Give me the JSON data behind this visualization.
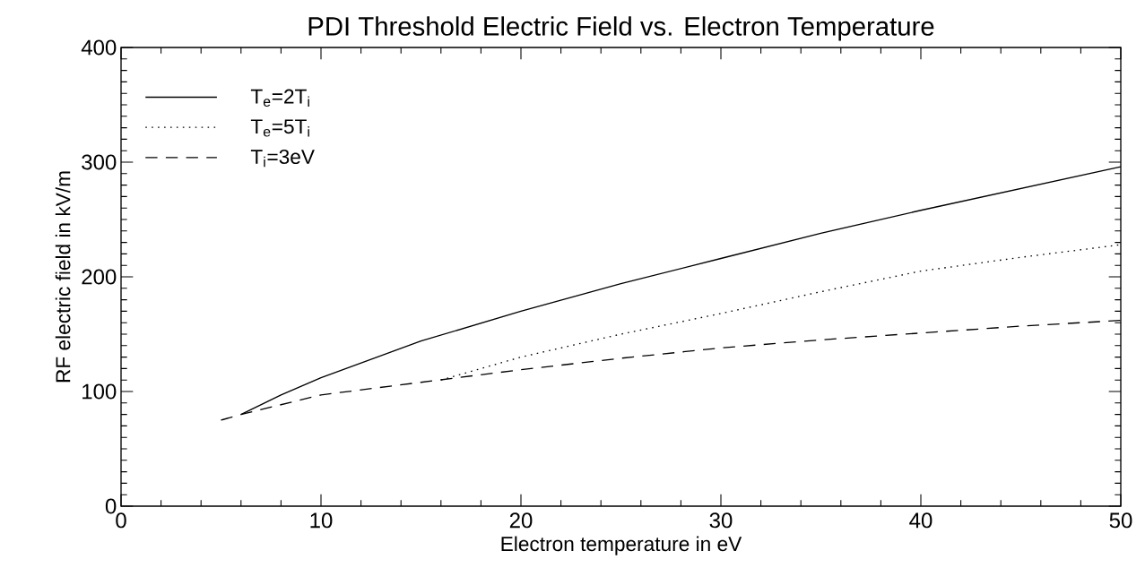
{
  "chart_data": {
    "type": "line",
    "title": "PDI Threshold Electric Field vs. Electron Temperature",
    "xlabel": "Electron temperature in eV",
    "ylabel": "RF electric field in kV/m",
    "xlim": [
      0,
      50
    ],
    "ylim": [
      0,
      400
    ],
    "xticks": [
      0,
      10,
      20,
      30,
      40,
      50
    ],
    "yticks": [
      0,
      100,
      200,
      300,
      400
    ],
    "legend": "top left",
    "grid": false,
    "marker": "none",
    "series": [
      {
        "name": "T$_{e}$=2T$_{i}$",
        "color": "#000000",
        "line_style": "solid",
        "x": [
          6,
          8,
          10,
          15,
          20,
          25,
          30,
          35,
          40,
          45,
          50
        ],
        "values": [
          80,
          97,
          112,
          144,
          170,
          194,
          216,
          238,
          258,
          277,
          296
        ]
      },
      {
        "name": "T$_{e}$=5T$_{i}$",
        "color": "#000000",
        "line_style": "dotted",
        "x": [
          16,
          20,
          25,
          30,
          35,
          40,
          45,
          50
        ],
        "values": [
          110,
          130,
          150,
          168,
          187,
          205,
          217,
          228
        ]
      },
      {
        "name": "T$_{i}$=3eV",
        "color": "#000000",
        "line_style": "dashed",
        "x": [
          5,
          6,
          10,
          15,
          20,
          25,
          30,
          35,
          40,
          45,
          50
        ],
        "values": [
          75,
          80,
          97,
          108,
          119,
          129,
          138,
          145,
          151,
          157,
          162
        ]
      }
    ]
  }
}
